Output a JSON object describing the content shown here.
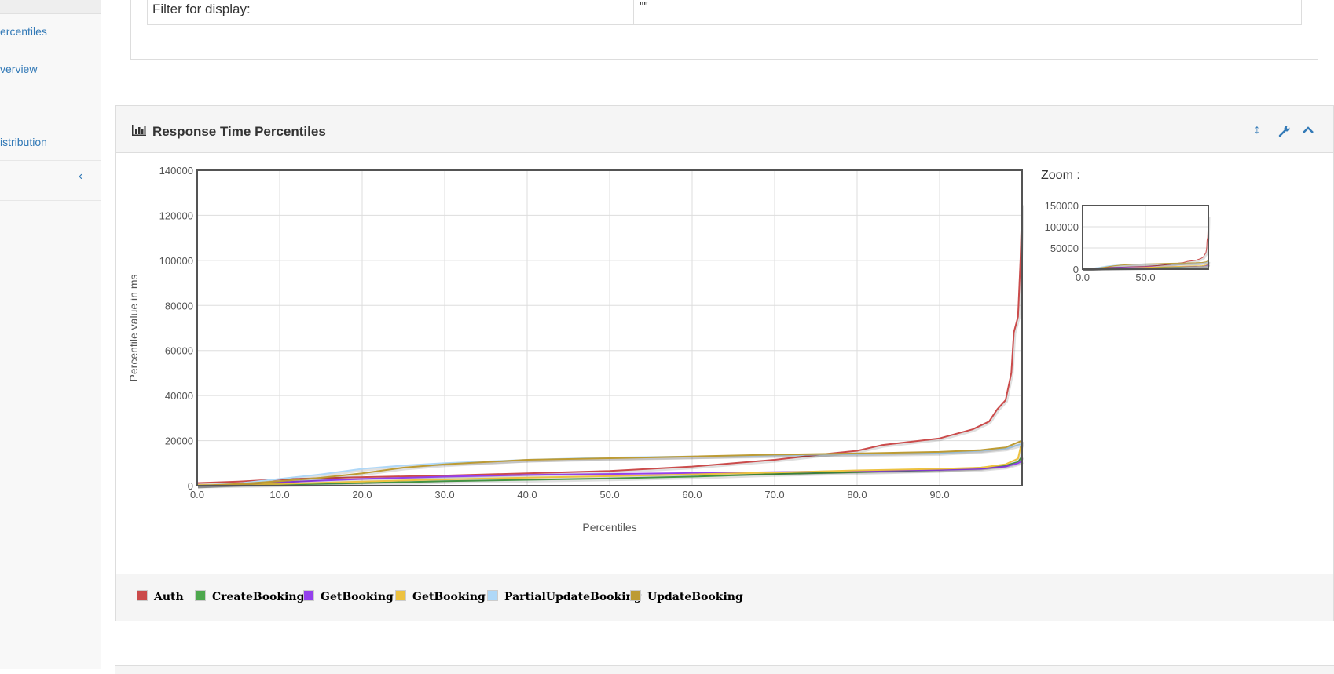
{
  "sidebar": {
    "items": [
      {
        "label": "ercentiles"
      },
      {
        "label": "verview"
      },
      {
        "label": "istribution"
      }
    ]
  },
  "filter": {
    "label": "Filter for display:",
    "value": "\"\""
  },
  "panel": {
    "title": "Response Time Percentiles",
    "icons": [
      "resize-vertical-icon",
      "wrench-icon",
      "chevron-up-icon"
    ]
  },
  "zoom": {
    "label": "Zoom :",
    "y_ticks": [
      "150000",
      "100000",
      "50000",
      "0"
    ],
    "x_ticks": [
      "0.0",
      "50.0"
    ]
  },
  "chart_data": {
    "type": "line",
    "title": "",
    "xlabel": "Percentiles",
    "ylabel": "Percentile value in ms",
    "xlim": [
      0,
      100
    ],
    "ylim": [
      0,
      140000
    ],
    "grid": true,
    "legend_position": "bottom",
    "x_ticks": [
      "0.0",
      "10.0",
      "20.0",
      "30.0",
      "40.0",
      "50.0",
      "60.0",
      "70.0",
      "80.0",
      "90.0"
    ],
    "y_ticks": [
      "140000",
      "120000",
      "100000",
      "80000",
      "60000",
      "40000",
      "20000",
      "0"
    ],
    "series": [
      {
        "name": "Auth",
        "color": "#cb4b4b",
        "points": [
          [
            0,
            1200
          ],
          [
            5,
            1800
          ],
          [
            10,
            2800
          ],
          [
            20,
            3800
          ],
          [
            30,
            4500
          ],
          [
            40,
            5500
          ],
          [
            50,
            6500
          ],
          [
            60,
            8500
          ],
          [
            70,
            11500
          ],
          [
            76,
            14000
          ],
          [
            80,
            15500
          ],
          [
            83,
            18000
          ],
          [
            90,
            21000
          ],
          [
            94,
            25000
          ],
          [
            96,
            28500
          ],
          [
            97,
            34000
          ],
          [
            98,
            38000
          ],
          [
            98.7,
            50000
          ],
          [
            99,
            68000
          ],
          [
            99.5,
            75000
          ],
          [
            99.8,
            100000
          ],
          [
            100,
            125000
          ]
        ]
      },
      {
        "name": "CreateBooking",
        "color": "#4da74d",
        "points": [
          [
            0,
            0
          ],
          [
            10,
            500
          ],
          [
            20,
            1200
          ],
          [
            30,
            2000
          ],
          [
            40,
            2600
          ],
          [
            50,
            3200
          ],
          [
            60,
            4000
          ],
          [
            70,
            5200
          ],
          [
            80,
            6000
          ],
          [
            90,
            7000
          ],
          [
            95,
            8000
          ],
          [
            98,
            9000
          ],
          [
            99.5,
            10500
          ],
          [
            100,
            13000
          ]
        ]
      },
      {
        "name": "GetBooking",
        "color": "#9440ed",
        "points": [
          [
            0,
            0
          ],
          [
            10,
            1500
          ],
          [
            20,
            3000
          ],
          [
            30,
            4000
          ],
          [
            40,
            4800
          ],
          [
            50,
            5200
          ],
          [
            60,
            5600
          ],
          [
            70,
            6000
          ],
          [
            80,
            6500
          ],
          [
            90,
            7000
          ],
          [
            95,
            7500
          ],
          [
            98,
            8500
          ],
          [
            99.5,
            10000
          ],
          [
            100,
            11000
          ]
        ]
      },
      {
        "name": "GetBooking",
        "color": "#edc240",
        "points": [
          [
            0,
            300
          ],
          [
            10,
            800
          ],
          [
            20,
            1800
          ],
          [
            30,
            2800
          ],
          [
            40,
            3600
          ],
          [
            50,
            4200
          ],
          [
            60,
            5000
          ],
          [
            70,
            5800
          ],
          [
            80,
            6800
          ],
          [
            90,
            7500
          ],
          [
            95,
            8000
          ],
          [
            98,
            9500
          ],
          [
            99.5,
            12000
          ],
          [
            100,
            20000
          ]
        ]
      },
      {
        "name": "PartialUpdateBooking",
        "color": "#afd8f8",
        "points": [
          [
            0,
            0
          ],
          [
            5,
            1000
          ],
          [
            10,
            3000
          ],
          [
            15,
            5000
          ],
          [
            20,
            7500
          ],
          [
            25,
            9000
          ],
          [
            30,
            10000
          ],
          [
            40,
            11500
          ],
          [
            50,
            12500
          ],
          [
            60,
            13000
          ],
          [
            70,
            13500
          ],
          [
            80,
            14000
          ],
          [
            90,
            14500
          ],
          [
            95,
            15500
          ],
          [
            98,
            16500
          ],
          [
            100,
            18500
          ]
        ]
      },
      {
        "name": "UpdateBooking",
        "color": "#bd9b33",
        "points": [
          [
            0,
            0
          ],
          [
            5,
            800
          ],
          [
            10,
            2000
          ],
          [
            15,
            3500
          ],
          [
            20,
            5500
          ],
          [
            25,
            8000
          ],
          [
            30,
            9500
          ],
          [
            40,
            11500
          ],
          [
            50,
            12200
          ],
          [
            60,
            13000
          ],
          [
            70,
            13800
          ],
          [
            80,
            14300
          ],
          [
            90,
            15000
          ],
          [
            95,
            15800
          ],
          [
            98,
            17000
          ],
          [
            100,
            20000
          ]
        ]
      }
    ]
  }
}
